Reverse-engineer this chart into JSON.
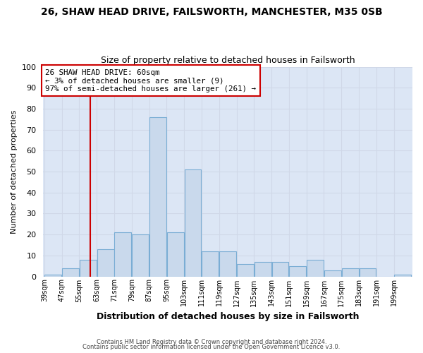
{
  "title": "26, SHAW HEAD DRIVE, FAILSWORTH, MANCHESTER, M35 0SB",
  "subtitle": "Size of property relative to detached houses in Failsworth",
  "xlabel": "Distribution of detached houses by size in Failsworth",
  "ylabel": "Number of detached properties",
  "bin_labels": [
    "39sqm",
    "47sqm",
    "55sqm",
    "63sqm",
    "71sqm",
    "79sqm",
    "87sqm",
    "95sqm",
    "103sqm",
    "111sqm",
    "119sqm",
    "127sqm",
    "135sqm",
    "143sqm",
    "151sqm",
    "159sqm",
    "167sqm",
    "175sqm",
    "183sqm",
    "191sqm",
    "199sqm"
  ],
  "bin_edges": [
    39,
    47,
    55,
    63,
    71,
    79,
    87,
    95,
    103,
    111,
    119,
    127,
    135,
    143,
    151,
    159,
    167,
    175,
    183,
    191,
    199,
    207
  ],
  "bar_heights": [
    1,
    4,
    8,
    13,
    21,
    20,
    76,
    21,
    51,
    12,
    12,
    6,
    7,
    7,
    5,
    8,
    3,
    4,
    4,
    0,
    1
  ],
  "bar_facecolor": "#c9d9ec",
  "bar_edgecolor": "#7aadd4",
  "ylim": [
    0,
    100
  ],
  "yticks": [
    0,
    10,
    20,
    30,
    40,
    50,
    60,
    70,
    80,
    90,
    100
  ],
  "vline_x": 60,
  "vline_color": "#cc0000",
  "annotation_text": "26 SHAW HEAD DRIVE: 60sqm\n← 3% of detached houses are smaller (9)\n97% of semi-detached houses are larger (261) →",
  "annotation_box_edgecolor": "#cc0000",
  "annotation_box_facecolor": "#ffffff",
  "grid_color": "#d0d8e8",
  "plot_bg_color": "#dce6f5",
  "fig_bg_color": "#ffffff",
  "footer_line1": "Contains HM Land Registry data © Crown copyright and database right 2024.",
  "footer_line2": "Contains public sector information licensed under the Open Government Licence v3.0."
}
